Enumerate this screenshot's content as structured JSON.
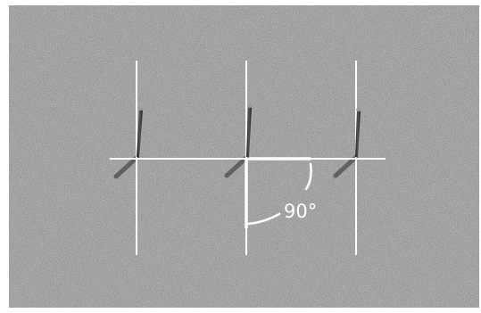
{
  "figure": {
    "angle_label": "90°"
  },
  "colors": {
    "background": "#ffffff",
    "gravel": "#8c8c8c",
    "guide_lines": "#ffffff",
    "stakes": "#2a2a2a"
  },
  "icons": [
    "stake-icon"
  ]
}
